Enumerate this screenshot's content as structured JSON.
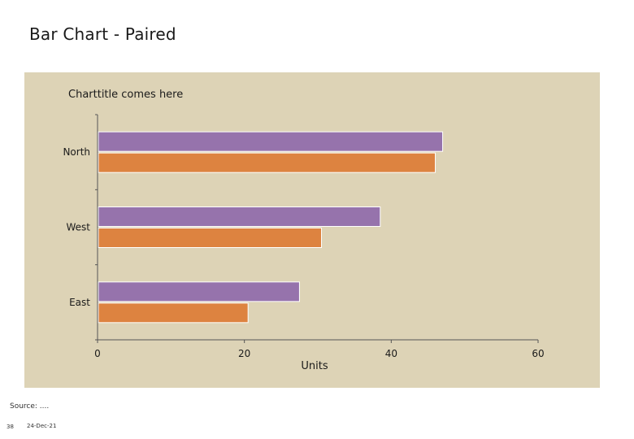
{
  "slide": {
    "title": "Bar Chart - Paired",
    "source": "Source: ....",
    "page_number": "38",
    "date": "24-Dec-21"
  },
  "colors": {
    "panel_background": "#ddd3b6",
    "series_1": "#9673ac",
    "series_2": "#dd8340",
    "axis": "#555555"
  },
  "chart_data": {
    "type": "bar",
    "orientation": "horizontal",
    "title": "Charttitle comes here",
    "xlabel": "Units",
    "ylabel": "",
    "categories": [
      "North",
      "West",
      "East"
    ],
    "series": [
      {
        "values": [
          47,
          38.5,
          27.5
        ],
        "color": "#9673ac"
      },
      {
        "values": [
          46,
          30.5,
          20.5
        ],
        "color": "#dd8340"
      }
    ],
    "xlim": [
      0,
      60
    ],
    "xticks": [
      0,
      20,
      40,
      60
    ],
    "grid": false,
    "legend": "none"
  }
}
